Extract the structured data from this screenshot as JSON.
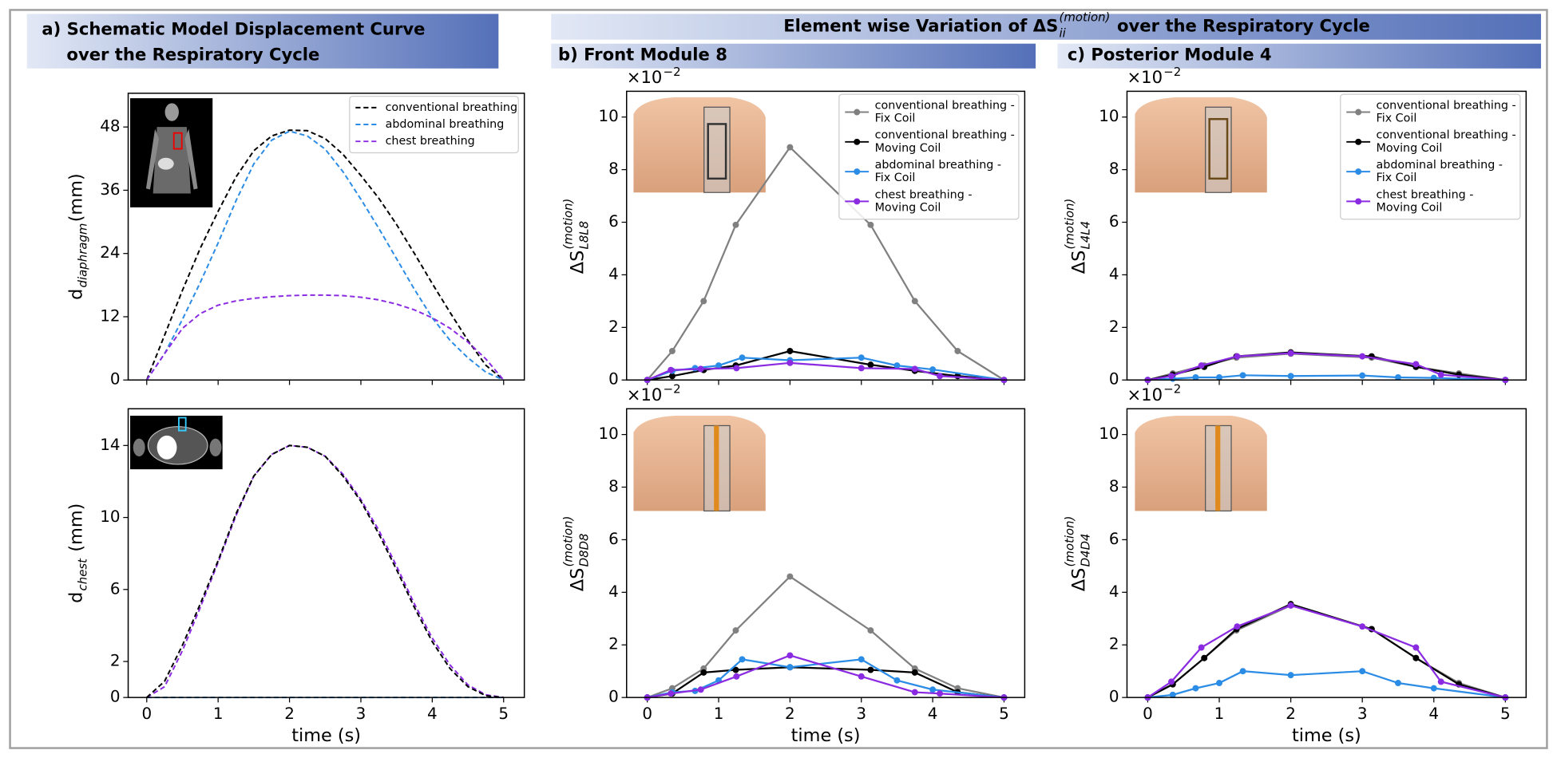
{
  "headers": {
    "a": [
      "a) Schematic Model Displacement Curve",
      "over the Respiratory Cycle"
    ],
    "main": {
      "text": "Element wise Variation of ΔS",
      "sup": "(motion)",
      "sub": "ii",
      "after": " over the Respiratory Cycle"
    },
    "b": "b) Front Module 8",
    "c": "c) Posterior Module 4"
  },
  "chart_data": [
    {
      "type": "line",
      "xlim": [
        -0.26,
        5.29
      ],
      "ylim": [
        0,
        54.4
      ],
      "xticks": [
        0,
        1,
        2,
        3,
        4,
        5
      ],
      "yticks": [
        0,
        12,
        24,
        36,
        48
      ],
      "ylabel": {
        "text": "d",
        "sub": "diaphragm",
        "after": "(mm)"
      },
      "legend": "upper right",
      "x": [
        0,
        0.25,
        0.5,
        0.75,
        1,
        1.25,
        1.5,
        1.75,
        2,
        2.25,
        2.5,
        2.75,
        3,
        3.25,
        3.5,
        3.75,
        4,
        4.25,
        4.5,
        4.75,
        5
      ],
      "series": [
        {
          "name": "conventional breathing",
          "color": "#000000",
          "linestyle": "dashed",
          "values": [
            0,
            8.5,
            17,
            25,
            32,
            38.5,
            43.5,
            46.3,
            47.4,
            47.3,
            45.8,
            42.8,
            38.8,
            34.5,
            29.5,
            24,
            18.3,
            12.8,
            7.5,
            2.8,
            0
          ]
        },
        {
          "name": "abdominal breathing",
          "color": "#2b8ce6",
          "linestyle": "dashed",
          "values": [
            0,
            5,
            11.5,
            18.5,
            26,
            34,
            41,
            45.5,
            47.2,
            46.3,
            43.8,
            39.5,
            34.3,
            28.8,
            23,
            17.2,
            11.8,
            7.5,
            4.2,
            1.5,
            0
          ]
        },
        {
          "name": "chest breathing",
          "color": "#8a2be2",
          "linestyle": "dashed",
          "values": [
            0,
            5,
            9.8,
            12.6,
            14.2,
            15,
            15.5,
            15.8,
            16,
            16.1,
            16.1,
            16,
            15.7,
            15.2,
            14.4,
            13.3,
            11.8,
            9.8,
            7.2,
            4,
            0
          ]
        }
      ]
    },
    {
      "type": "line",
      "xlim": [
        -0.26,
        5.29
      ],
      "ylim": [
        0,
        16.04
      ],
      "xticks": [
        0,
        1,
        2,
        3,
        4,
        5
      ],
      "yticks": [
        0,
        2,
        6,
        10,
        14
      ],
      "xtick_labels": true,
      "xlabel": "time (s)",
      "ylabel": {
        "text": "d",
        "sub": "chest",
        "after": " (mm)"
      },
      "x": [
        0,
        0.25,
        0.5,
        0.75,
        1,
        1.25,
        1.5,
        1.75,
        2,
        2.25,
        2.5,
        2.75,
        3,
        3.25,
        3.5,
        3.75,
        4,
        4.25,
        4.5,
        4.75,
        5
      ],
      "series": [
        {
          "color": "#2b8ce6",
          "linestyle": "dashed",
          "values": [
            0,
            0,
            0,
            0,
            0,
            0,
            0,
            0,
            0,
            0,
            0,
            0,
            0,
            0,
            0,
            0,
            0,
            0,
            0,
            0,
            0
          ]
        },
        {
          "color": "#8a2be2",
          "linestyle": "dashed",
          "values": [
            0,
            0.6,
            2.6,
            5,
            7.5,
            10.1,
            12.3,
            13.5,
            14,
            13.9,
            13.4,
            12.4,
            11,
            9.3,
            7.3,
            5.2,
            3.3,
            1.8,
            0.7,
            0.15,
            0
          ]
        },
        {
          "color": "#000000",
          "linestyle": "dashed",
          "values": [
            0,
            0.9,
            2.9,
            5.2,
            7.6,
            10.2,
            12.3,
            13.5,
            14,
            13.9,
            13.4,
            12.3,
            10.9,
            9.1,
            7.1,
            5,
            3.1,
            1.6,
            0.6,
            0.1,
            0
          ]
        }
      ]
    },
    {
      "type": "line",
      "xlim": [
        -0.29,
        5.29
      ],
      "ylim": [
        0,
        10.98
      ],
      "xticks": [
        0,
        1,
        2,
        3,
        4,
        5
      ],
      "yticks": [
        0,
        2,
        4,
        6,
        8,
        10
      ],
      "offset_text": {
        "text": "×10",
        "sup": "−2"
      },
      "ylabel": {
        "text": "ΔS",
        "sup": "(motion)",
        "sub": "L8L8"
      },
      "legend": "upper right",
      "series": [
        {
          "name": "conventional breathing -\nFix Coil",
          "color": "#808080",
          "marker": "o",
          "x": [
            0,
            0.35,
            0.79,
            1.24,
            2,
            3.13,
            3.75,
            4.35,
            5
          ],
          "values": [
            0,
            1.1,
            3.0,
            5.9,
            8.85,
            5.9,
            3.0,
            1.1,
            0
          ]
        },
        {
          "name": "conventional breathing -\nMoving Coil",
          "color": "#000000",
          "marker": "o",
          "x": [
            0,
            0.35,
            0.79,
            1.24,
            2,
            3.13,
            3.75,
            4.35,
            5
          ],
          "values": [
            0,
            0.15,
            0.38,
            0.55,
            1.1,
            0.58,
            0.35,
            0.15,
            0
          ]
        },
        {
          "name": "abdominal breathing -\nFix Coil",
          "color": "#2b8ce6",
          "marker": "o",
          "x": [
            0,
            0.35,
            0.67,
            1,
            1.33,
            2,
            3,
            3.5,
            4,
            5
          ],
          "values": [
            0,
            0.35,
            0.45,
            0.55,
            0.85,
            0.75,
            0.85,
            0.55,
            0.4,
            0
          ]
        },
        {
          "name": "chest breathing -\nMoving Coil",
          "color": "#8a2be2",
          "marker": "o",
          "x": [
            0,
            0.33,
            0.75,
            1.25,
            2,
            3,
            3.75,
            4.1,
            5
          ],
          "values": [
            0,
            0.38,
            0.42,
            0.45,
            0.65,
            0.45,
            0.42,
            0.15,
            0
          ]
        }
      ]
    },
    {
      "type": "line",
      "xlim": [
        -0.29,
        5.29
      ],
      "ylim": [
        0,
        10.98
      ],
      "xticks": [
        0,
        1,
        2,
        3,
        4,
        5
      ],
      "yticks": [
        0,
        2,
        4,
        6,
        8,
        10
      ],
      "xtick_labels": true,
      "xlabel": "time (s)",
      "offset_text": {
        "text": "×10",
        "sup": "−2"
      },
      "ylabel": {
        "text": "ΔS",
        "sup": "(motion)",
        "sub": "D8D8"
      },
      "series": [
        {
          "color": "#808080",
          "marker": "o",
          "x": [
            0,
            0.35,
            0.79,
            1.24,
            2,
            3.13,
            3.75,
            4.35,
            5
          ],
          "values": [
            0,
            0.35,
            1.1,
            2.55,
            4.6,
            2.55,
            1.1,
            0.35,
            0
          ]
        },
        {
          "color": "#000000",
          "marker": "o",
          "x": [
            0,
            0.35,
            0.79,
            1.24,
            2,
            3.13,
            3.75,
            4.35,
            5
          ],
          "values": [
            0,
            0.15,
            0.95,
            1.05,
            1.15,
            1.05,
            0.95,
            0.2,
            0
          ]
        },
        {
          "color": "#2b8ce6",
          "marker": "o",
          "x": [
            0,
            0.35,
            0.67,
            1,
            1.33,
            2,
            3,
            3.5,
            4,
            5
          ],
          "values": [
            0,
            0.2,
            0.25,
            0.65,
            1.45,
            1.15,
            1.45,
            0.65,
            0.3,
            0
          ]
        },
        {
          "color": "#8a2be2",
          "marker": "o",
          "x": [
            0,
            0.33,
            0.75,
            1.25,
            2,
            3,
            3.75,
            4.1,
            5
          ],
          "values": [
            0,
            0.15,
            0.3,
            0.8,
            1.6,
            0.8,
            0.2,
            0.15,
            0
          ]
        }
      ]
    },
    {
      "type": "line",
      "xlim": [
        -0.29,
        5.29
      ],
      "ylim": [
        0,
        10.98
      ],
      "xticks": [
        0,
        1,
        2,
        3,
        4,
        5
      ],
      "yticks": [
        0,
        2,
        4,
        6,
        8,
        10
      ],
      "offset_text": {
        "text": "×10",
        "sup": "−2"
      },
      "ylabel": {
        "text": "ΔS",
        "sup": "(motion)",
        "sub": "L4L4"
      },
      "legend": "upper right",
      "series": [
        {
          "name": "conventional breathing -\nFix Coil",
          "color": "#808080",
          "marker": "o",
          "x": [
            0,
            0.35,
            0.79,
            1.24,
            2,
            3.13,
            3.75,
            4.35,
            5
          ],
          "values": [
            0,
            0.25,
            0.55,
            0.85,
            1.0,
            0.85,
            0.5,
            0.25,
            0
          ]
        },
        {
          "name": "conventional breathing -\nMoving Coil",
          "color": "#000000",
          "marker": "o",
          "x": [
            0,
            0.35,
            0.79,
            1.24,
            2,
            3.13,
            3.75,
            4.35,
            5
          ],
          "values": [
            0,
            0.2,
            0.5,
            0.9,
            1.05,
            0.9,
            0.5,
            0.2,
            0
          ]
        },
        {
          "name": "abdominal breathing -\nFix Coil",
          "color": "#2b8ce6",
          "marker": "o",
          "x": [
            0,
            0.35,
            0.67,
            1,
            1.33,
            2,
            3,
            3.5,
            4,
            5
          ],
          "values": [
            0,
            0.05,
            0.1,
            0.1,
            0.18,
            0.15,
            0.17,
            0.1,
            0.08,
            0
          ]
        },
        {
          "name": "chest breathing -\nMoving Coil",
          "color": "#8a2be2",
          "marker": "o",
          "x": [
            0,
            0.33,
            0.75,
            1.25,
            2,
            3,
            3.75,
            4.1,
            5
          ],
          "values": [
            0,
            0.15,
            0.55,
            0.9,
            1.02,
            0.9,
            0.6,
            0.2,
            0
          ]
        }
      ]
    },
    {
      "type": "line",
      "xlim": [
        -0.29,
        5.29
      ],
      "ylim": [
        0,
        10.98
      ],
      "xticks": [
        0,
        1,
        2,
        3,
        4,
        5
      ],
      "yticks": [
        0,
        2,
        4,
        6,
        8,
        10
      ],
      "xtick_labels": true,
      "xlabel": "time (s)",
      "offset_text": {
        "text": "×10",
        "sup": "−2"
      },
      "ylabel": {
        "text": "ΔS",
        "sup": "(motion)",
        "sub": "D4D4"
      },
      "series": [
        {
          "color": "#808080",
          "marker": "o",
          "x": [
            0,
            0.35,
            0.79,
            1.24,
            2,
            3.13,
            3.75,
            4.35,
            5
          ],
          "values": [
            0,
            0.5,
            1.5,
            2.55,
            3.5,
            2.6,
            1.5,
            0.55,
            0
          ]
        },
        {
          "color": "#000000",
          "marker": "o",
          "x": [
            0,
            0.35,
            0.79,
            1.24,
            2,
            3.13,
            3.75,
            4.35,
            5
          ],
          "values": [
            0,
            0.5,
            1.5,
            2.6,
            3.55,
            2.6,
            1.5,
            0.5,
            0
          ]
        },
        {
          "color": "#2b8ce6",
          "marker": "o",
          "x": [
            0,
            0.35,
            0.67,
            1,
            1.33,
            2,
            3,
            3.5,
            4,
            5
          ],
          "values": [
            0,
            0.1,
            0.35,
            0.55,
            1.0,
            0.85,
            1.0,
            0.55,
            0.35,
            0
          ]
        },
        {
          "color": "#8a2be2",
          "marker": "o",
          "x": [
            0,
            0.33,
            0.75,
            1.25,
            2,
            3,
            3.75,
            4.1,
            5
          ],
          "values": [
            0,
            0.6,
            1.9,
            2.7,
            3.5,
            2.7,
            1.9,
            0.6,
            0
          ]
        }
      ]
    }
  ]
}
